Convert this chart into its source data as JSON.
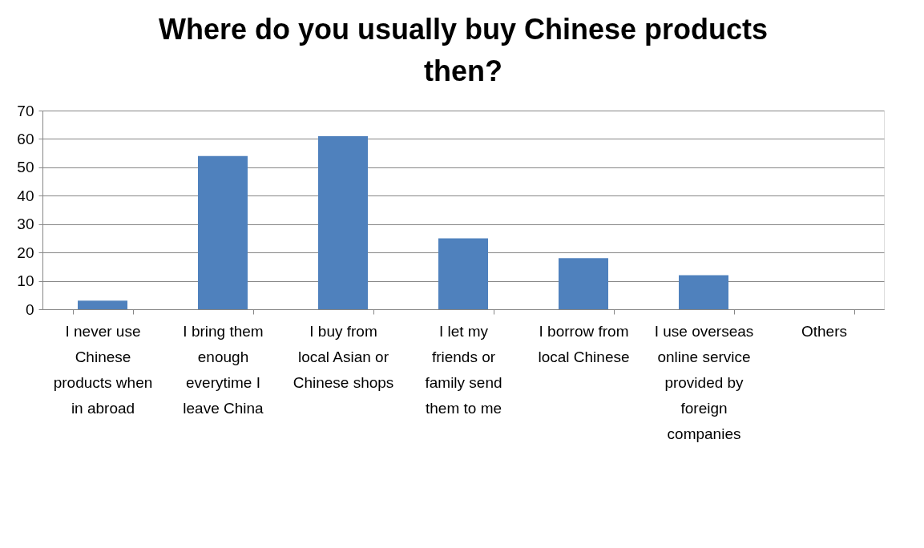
{
  "chart_data": {
    "type": "bar",
    "title": "Where do you usually buy Chinese products then?",
    "categories": [
      "I never use Chinese products when in abroad",
      "I bring them enough everytime I leave China",
      "I buy from local Asian or Chinese shops",
      "I let my friends or family send them to me",
      "I borrow from local Chinese",
      "I use overseas online service provided by foreign companies",
      "Others"
    ],
    "values": [
      3,
      54,
      61,
      25,
      18,
      12,
      0
    ],
    "color": "#4f81bd",
    "ylim": [
      0,
      70
    ],
    "yticks": [
      0,
      10,
      20,
      30,
      40,
      50,
      60,
      70
    ],
    "grid": "y"
  }
}
